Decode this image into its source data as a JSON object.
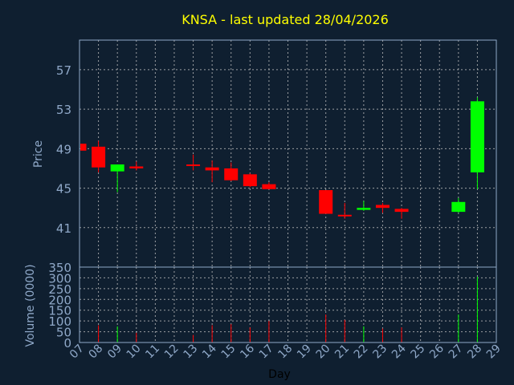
{
  "chart_data": [
    {
      "type": "candlestick",
      "title": "KNSA - last updated 28/04/2026",
      "ylabel": "Price",
      "ylim": [
        37,
        60
      ],
      "yticks": [
        41,
        45,
        49,
        53,
        57
      ],
      "grid": true,
      "series": [
        {
          "x": "07",
          "open": 49.5,
          "high": 49.5,
          "low": 48.8,
          "close": 48.8,
          "direction": "down"
        },
        {
          "x": "08",
          "open": 49.2,
          "high": 49.8,
          "low": 46.6,
          "close": 47.1,
          "direction": "down"
        },
        {
          "x": "09",
          "open": 46.7,
          "high": 47.4,
          "low": 44.6,
          "close": 47.4,
          "direction": "up"
        },
        {
          "x": "10",
          "open": 47.2,
          "high": 47.7,
          "low": 46.8,
          "close": 47.0,
          "direction": "down"
        },
        {
          "x": "13",
          "open": 47.4,
          "high": 48.4,
          "low": 46.8,
          "close": 47.3,
          "direction": "down"
        },
        {
          "x": "14",
          "open": 47.1,
          "high": 47.8,
          "low": 45.6,
          "close": 46.8,
          "direction": "down"
        },
        {
          "x": "15",
          "open": 47.0,
          "high": 47.6,
          "low": 45.7,
          "close": 45.8,
          "direction": "down"
        },
        {
          "x": "16",
          "open": 46.4,
          "high": 46.5,
          "low": 45.1,
          "close": 45.2,
          "direction": "down"
        },
        {
          "x": "17",
          "open": 45.4,
          "high": 45.6,
          "low": 44.9,
          "close": 44.9,
          "direction": "down"
        },
        {
          "x": "20",
          "open": 44.8,
          "high": 44.8,
          "low": 42.4,
          "close": 42.4,
          "direction": "down"
        },
        {
          "x": "21",
          "open": 42.3,
          "high": 43.5,
          "low": 41.9,
          "close": 42.2,
          "direction": "down"
        },
        {
          "x": "22",
          "open": 42.8,
          "high": 43.7,
          "low": 42.7,
          "close": 43.0,
          "direction": "up"
        },
        {
          "x": "23",
          "open": 43.3,
          "high": 43.5,
          "low": 42.5,
          "close": 43.0,
          "direction": "down"
        },
        {
          "x": "24",
          "open": 42.9,
          "high": 43.0,
          "low": 41.9,
          "close": 42.6,
          "direction": "down"
        },
        {
          "x": "27",
          "open": 42.6,
          "high": 44.0,
          "low": 42.5,
          "close": 43.6,
          "direction": "up"
        },
        {
          "x": "28",
          "open": 46.6,
          "high": 54.2,
          "low": 44.9,
          "close": 53.8,
          "direction": "up"
        }
      ]
    },
    {
      "type": "bar",
      "ylabel": "Volume (0000)",
      "ylim": [
        0,
        350
      ],
      "yticks": [
        0,
        50,
        100,
        150,
        200,
        250,
        300,
        350
      ],
      "xlabel": "Day",
      "x_tick_labels": [
        "07",
        "08",
        "09",
        "10",
        "11",
        "12",
        "13",
        "14",
        "15",
        "16",
        "17",
        "18",
        "19",
        "20",
        "21",
        "22",
        "23",
        "24",
        "25",
        "26",
        "27",
        "28",
        "29"
      ],
      "series": [
        {
          "x": "08",
          "value": 80,
          "direction": "down"
        },
        {
          "x": "09",
          "value": 75,
          "direction": "up"
        },
        {
          "x": "10",
          "value": 45,
          "direction": "down"
        },
        {
          "x": "13",
          "value": 35,
          "direction": "down"
        },
        {
          "x": "14",
          "value": 80,
          "direction": "down"
        },
        {
          "x": "15",
          "value": 85,
          "direction": "down"
        },
        {
          "x": "16",
          "value": 70,
          "direction": "down"
        },
        {
          "x": "17",
          "value": 100,
          "direction": "down"
        },
        {
          "x": "20",
          "value": 130,
          "direction": "down"
        },
        {
          "x": "21",
          "value": 105,
          "direction": "down"
        },
        {
          "x": "22",
          "value": 75,
          "direction": "up"
        },
        {
          "x": "23",
          "value": 65,
          "direction": "down"
        },
        {
          "x": "24",
          "value": 70,
          "direction": "down"
        },
        {
          "x": "27",
          "value": 130,
          "direction": "up"
        },
        {
          "x": "28",
          "value": 305,
          "direction": "up"
        }
      ]
    }
  ],
  "colors": {
    "background": "#0f1f30",
    "up": "#00ff00",
    "down": "#ff0000",
    "grid": "#c0c0c0",
    "frame": "#8fa8c8",
    "title": "#ffff00",
    "axis_text": "#8fa8c8",
    "xlabel": "#000000"
  }
}
